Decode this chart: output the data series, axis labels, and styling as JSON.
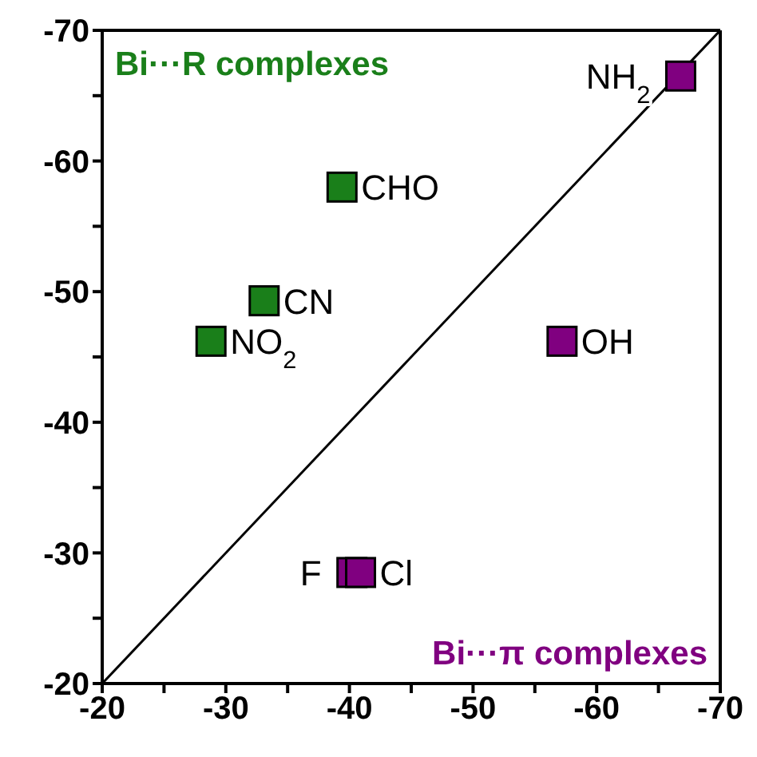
{
  "chart_data": {
    "type": "scatter",
    "marker": "square",
    "xlim": [
      -20,
      -70
    ],
    "ylim": [
      -20,
      -70
    ],
    "xticks": [
      -20,
      {
        "value": -25,
        "label": null
      },
      -30,
      {
        "value": -35,
        "label": null
      },
      -40,
      {
        "value": -45,
        "label": null
      },
      -50,
      {
        "value": -55,
        "label": null
      },
      -60,
      {
        "value": -65,
        "label": null
      },
      -70
    ],
    "yticks": [
      -20,
      {
        "value": -25,
        "label": null
      },
      -30,
      {
        "value": -35,
        "label": null
      },
      -40,
      {
        "value": -45,
        "label": null
      },
      -50,
      {
        "value": -55,
        "label": null
      },
      -60,
      {
        "value": -65,
        "label": null
      },
      -70
    ],
    "series": [
      {
        "name": "Bi···R complexes",
        "color": "#1a7f1a",
        "x": [
          -39.4,
          -33.1,
          -28.8
        ],
        "values": [
          -58,
          -49.3,
          -46.2
        ]
      },
      {
        "name": "Bi···π complexes",
        "color": "#800080",
        "x": [
          -66.8,
          -57.2,
          -40.2,
          -40.9
        ],
        "values": [
          -66.5,
          -46.2,
          -28.5,
          -28.5
        ]
      },
      {
        "type": "line",
        "marker": "none",
        "color": "#000000",
        "x": [
          -20,
          -70
        ],
        "values": [
          -20,
          -70
        ]
      }
    ],
    "annotations": [
      {
        "text": "CHO",
        "x": -39.4,
        "y": -58
      },
      {
        "text": "CN",
        "x": -33.1,
        "y": -49.3
      },
      {
        "text": "NO$_{2}$",
        "x": -28.8,
        "y": -46.2
      },
      {
        "text": "NH$_{2}$",
        "x": -66.8,
        "y": -66.5
      },
      {
        "text": "OH",
        "x": -57.2,
        "y": -46.2
      },
      {
        "text": "F",
        "x": -40.2,
        "y": -28.5
      },
      {
        "text": "Cl",
        "x": -40.9,
        "y": -28.5
      }
    ]
  }
}
